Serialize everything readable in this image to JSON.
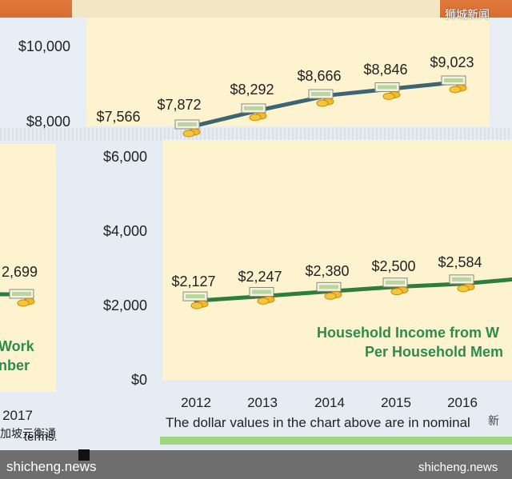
{
  "chart_data": [
    {
      "type": "line",
      "x": [
        "2012",
        "2013",
        "2014",
        "2015",
        "2016"
      ],
      "series": [
        {
          "values": [
            7872,
            8292,
            8666,
            8846,
            9023
          ],
          "color": "#3d6474"
        }
      ],
      "data_labels": [
        "$7,872",
        "$8,292",
        "$8,666",
        "$8,846",
        "$9,023"
      ],
      "extra_label": "$7,566",
      "y_ticks": [
        "$10,000",
        "$8,000",
        "$6,000",
        "$4,000",
        "$2,000",
        "$0"
      ],
      "ylim": [
        0,
        10000
      ]
    },
    {
      "type": "line",
      "x": [
        "2012",
        "2013",
        "2014",
        "2015",
        "2016"
      ],
      "series": [
        {
          "values": [
            2127,
            2247,
            2380,
            2500,
            2584
          ],
          "color": "#2e7d3f"
        }
      ],
      "data_labels": [
        "$2,127",
        "$2,247",
        "$2,380",
        "$2,500",
        "$2,584"
      ],
      "left_partial_label": "2,699",
      "left_partial_year": "2017",
      "legend": [
        "Household Income from W",
        "Per Household Mem"
      ],
      "left_legend": [
        "Work",
        "nber"
      ],
      "ylim": [
        0,
        10000
      ]
    }
  ],
  "note": "The dollar values in the chart above are in nominal",
  "note_left": "加坡元衡通",
  "note_left2": "terms.",
  "watermark_top": "狮城新闻",
  "watermark_right": "新",
  "footer_left": "shicheng.news",
  "footer_right": "shicheng.news",
  "colors": {
    "panel": "#fdf3cf",
    "upper_line": "#3d6474",
    "lower_line": "#2e7d3f",
    "legend": "#2f8a4f"
  }
}
